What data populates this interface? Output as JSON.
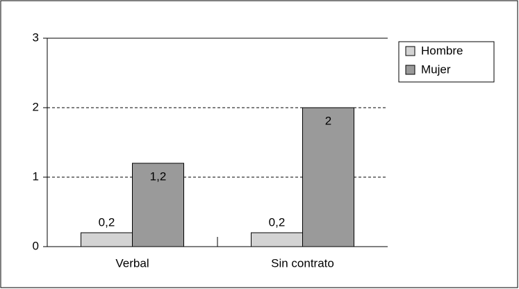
{
  "chart_data": {
    "type": "bar",
    "categories": [
      "Verbal",
      "Sin contrato"
    ],
    "series": [
      {
        "name": "Hombre",
        "color": "#d3d3d3",
        "values": [
          0.2,
          0.2
        ],
        "value_labels": [
          "0,2",
          "0,2"
        ]
      },
      {
        "name": "Mujer",
        "color": "#9a9a9a",
        "values": [
          1.2,
          2
        ],
        "value_labels": [
          "1,2",
          "2"
        ]
      }
    ],
    "ylim": [
      0,
      3
    ],
    "yticks": [
      0,
      1,
      2,
      3
    ],
    "grid": true,
    "legend": "right"
  }
}
